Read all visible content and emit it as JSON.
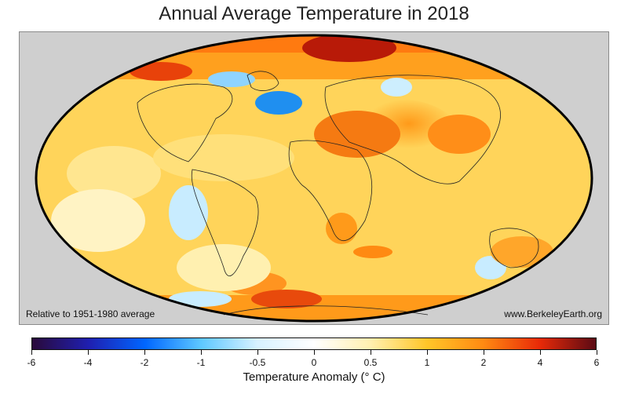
{
  "title": "Annual Average Temperature in 2018",
  "map": {
    "note_left": "Relative to 1951-1980 average",
    "note_right": "www.BerkeleyEarth.org",
    "projection": "Mollweide",
    "background_color": "#cfcfcf"
  },
  "colorbar": {
    "title": "Temperature Anomaly (° C)",
    "ticks": [
      "-6",
      "-4",
      "-2",
      "-1",
      "-0.5",
      "0",
      "0.5",
      "1",
      "2",
      "4",
      "6"
    ],
    "colors": [
      "#2a0a3a",
      "#1f1fb0",
      "#0066ff",
      "#5ec8ff",
      "#d8f2ff",
      "#ffffff",
      "#fff0b0",
      "#ffc629",
      "#ff8a12",
      "#e82a08",
      "#5a0a14"
    ]
  }
}
